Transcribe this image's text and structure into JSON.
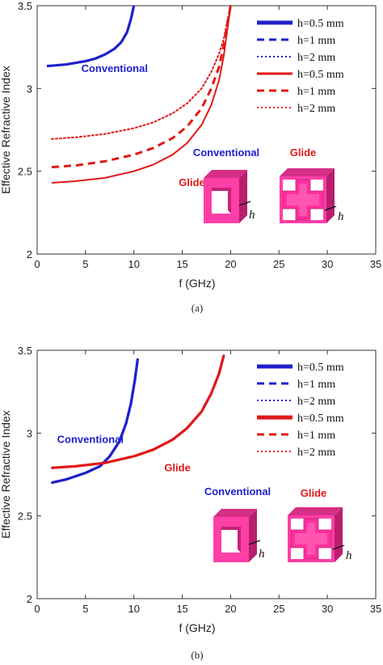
{
  "chart_data": [
    {
      "type": "line",
      "panel_label": "(a)",
      "xlabel": "f (GHz)",
      "ylabel": "Effective Refractive Index",
      "xlim": [
        0,
        35
      ],
      "ylim": [
        2,
        3.5
      ],
      "xticks": [
        "0",
        "5",
        "10",
        "15",
        "20",
        "25",
        "30",
        "35"
      ],
      "yticks": [
        "2",
        "2.5",
        "3",
        "3.5"
      ],
      "legend_position": "top-right",
      "series": [
        {
          "name": "h=0.5 mm",
          "color": "#1f1fcc",
          "style": "solid-thick",
          "x": [
            1,
            3,
            5,
            6,
            7,
            8,
            8.7,
            9.3,
            9.7,
            10
          ],
          "y": [
            3.135,
            3.145,
            3.165,
            3.18,
            3.205,
            3.24,
            3.28,
            3.34,
            3.42,
            3.5
          ]
        },
        {
          "name": "h=1 mm",
          "color": "#1f1fcc",
          "style": "dashed",
          "x": [],
          "y": []
        },
        {
          "name": "h=2 mm",
          "color": "#1f1fcc",
          "style": "dotted",
          "x": [],
          "y": []
        },
        {
          "name": "h=0.5 mm",
          "color": "#e01818",
          "style": "solid",
          "x": [
            1.5,
            4,
            7,
            10,
            12,
            14,
            15.5,
            17,
            18,
            18.8,
            19.3,
            19.7,
            20
          ],
          "y": [
            2.43,
            2.44,
            2.46,
            2.5,
            2.54,
            2.6,
            2.67,
            2.78,
            2.9,
            3.05,
            3.2,
            3.37,
            3.5
          ]
        },
        {
          "name": "h=1 mm",
          "color": "#e01818",
          "style": "dashed",
          "x": [
            1.5,
            4,
            7,
            10,
            12,
            14,
            15.5,
            17,
            18,
            18.8,
            19.3,
            19.7,
            20
          ],
          "y": [
            2.525,
            2.535,
            2.56,
            2.6,
            2.64,
            2.7,
            2.77,
            2.88,
            3.0,
            3.13,
            3.26,
            3.4,
            3.5
          ]
        },
        {
          "name": "h=2 mm",
          "color": "#e01818",
          "style": "dotted",
          "x": [
            1.5,
            4,
            7,
            10,
            12,
            14,
            15.5,
            17,
            18,
            18.8,
            19.3,
            19.7,
            20
          ],
          "y": [
            2.695,
            2.705,
            2.725,
            2.76,
            2.795,
            2.85,
            2.91,
            3.0,
            3.1,
            3.21,
            3.3,
            3.42,
            3.5
          ]
        }
      ],
      "annotations": [
        {
          "text": "Conventional",
          "color": "#1f1fcc",
          "x": 8,
          "y": 3.1
        },
        {
          "text": "Glide",
          "color": "#e01818",
          "x": 16,
          "y": 2.41
        }
      ],
      "inset": {
        "labels": [
          "Conventional",
          "Glide"
        ],
        "thickness_label": "h"
      }
    },
    {
      "type": "line",
      "panel_label": "(b)",
      "xlabel": "f (GHz)",
      "ylabel": "Effective Refractive Index",
      "xlim": [
        0,
        35
      ],
      "ylim": [
        2,
        3.5
      ],
      "xticks": [
        "0",
        "5",
        "10",
        "15",
        "20",
        "25",
        "30",
        "35"
      ],
      "yticks": [
        "2",
        "2.5",
        "3",
        "3.5"
      ],
      "legend_position": "top-right",
      "series": [
        {
          "name": "h=0.5 mm",
          "color": "#1f1fcc",
          "style": "solid-thick",
          "x": [
            1.5,
            3,
            5,
            6.5,
            7.5,
            8.5,
            9.2,
            9.7,
            10.1,
            10.4
          ],
          "y": [
            2.7,
            2.72,
            2.76,
            2.8,
            2.86,
            2.95,
            3.06,
            3.18,
            3.32,
            3.45
          ]
        },
        {
          "name": "h=1 mm",
          "color": "#1f1fcc",
          "style": "dashed",
          "x": [
            1.5,
            3,
            5,
            6.5,
            7.5,
            8.5,
            9.2,
            9.7,
            10.1,
            10.4
          ],
          "y": [
            2.7,
            2.72,
            2.76,
            2.8,
            2.86,
            2.95,
            3.06,
            3.18,
            3.32,
            3.45
          ]
        },
        {
          "name": "h=2 mm",
          "color": "#1f1fcc",
          "style": "dotted",
          "x": [
            1.5,
            3,
            5,
            6.5,
            7.5,
            8.5,
            9.2,
            9.7,
            10.1,
            10.4
          ],
          "y": [
            2.7,
            2.72,
            2.76,
            2.8,
            2.86,
            2.95,
            3.06,
            3.18,
            3.32,
            3.45
          ]
        },
        {
          "name": "h=0.5 mm",
          "color": "#e01818",
          "style": "solid-thick",
          "x": [
            1.5,
            4,
            7,
            10,
            12,
            14,
            15.5,
            17,
            18,
            18.8,
            19.3
          ],
          "y": [
            2.79,
            2.8,
            2.82,
            2.86,
            2.9,
            2.96,
            3.03,
            3.13,
            3.24,
            3.36,
            3.47
          ]
        },
        {
          "name": "h=1 mm",
          "color": "#e01818",
          "style": "dashed",
          "x": [
            1.5,
            4,
            7,
            10,
            12,
            14,
            15.5,
            17,
            18,
            18.8,
            19.3
          ],
          "y": [
            2.79,
            2.8,
            2.82,
            2.86,
            2.9,
            2.96,
            3.03,
            3.13,
            3.24,
            3.36,
            3.47
          ]
        },
        {
          "name": "h=2 mm",
          "color": "#e01818",
          "style": "dotted",
          "x": [
            1.5,
            4,
            7,
            10,
            12,
            14,
            15.5,
            17,
            18,
            18.8,
            19.3
          ],
          "y": [
            2.79,
            2.8,
            2.82,
            2.86,
            2.9,
            2.96,
            3.03,
            3.13,
            3.24,
            3.36,
            3.47
          ]
        }
      ],
      "annotations": [
        {
          "text": "Conventional",
          "color": "#1f1fcc",
          "x": 5.5,
          "y": 2.94
        },
        {
          "text": "Glide",
          "color": "#e01818",
          "x": 14.5,
          "y": 2.77
        }
      ],
      "inset": {
        "labels": [
          "Conventional",
          "Glide"
        ],
        "thickness_label": "h"
      }
    }
  ]
}
